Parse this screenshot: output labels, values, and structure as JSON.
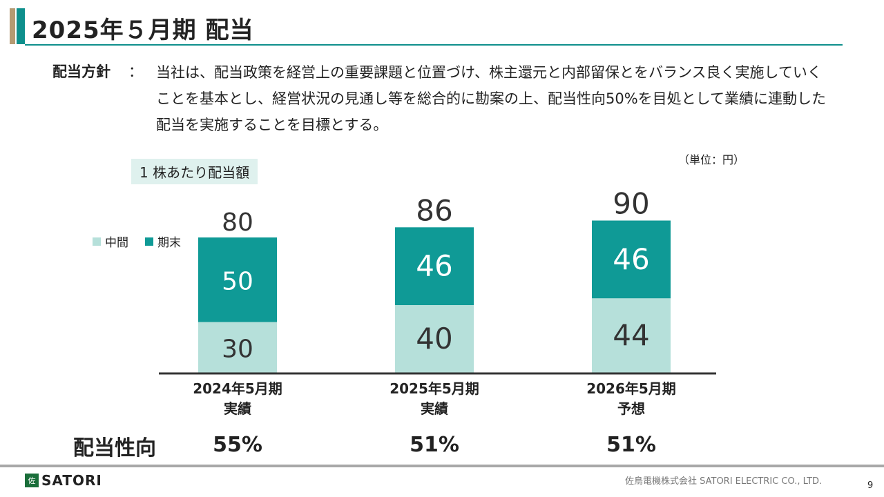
{
  "title": "2025年５月期 配当",
  "policy": {
    "label": "配当方針",
    "colon": "：",
    "text": "当社は、配当政策を経営上の重要課題と位置づけ、株主還元と内部留保とをバランス良く実施していくことを基本とし、経営状況の見通し等を総合的に勘案の上、配当性向50%を目処として業績に連動した配当を実施することを目標とする。"
  },
  "unit": "（単位：円）",
  "chart_data": {
    "type": "bar",
    "stacked": true,
    "title": "1 株あたり配当額",
    "categories": [
      [
        "2024年5月期",
        "実績"
      ],
      [
        "2025年5月期",
        "実績"
      ],
      [
        "2026年5月期",
        "予想"
      ]
    ],
    "series": [
      {
        "name": "中間",
        "values": [
          30,
          40,
          44
        ],
        "color": "#b6e0da"
      },
      {
        "name": "期末",
        "values": [
          50,
          46,
          46
        ],
        "color": "#0f9a96"
      }
    ],
    "totals": [
      80,
      86,
      90
    ],
    "ylim": [
      0,
      100
    ],
    "legend": "left"
  },
  "payout": {
    "label": "配当性向",
    "values": [
      "55%",
      "51%",
      "51%"
    ]
  },
  "footer": {
    "logo_mark": "佐",
    "logo_text": "SATORI",
    "company": "佐鳥電機株式会社 SATORI ELECTRIC CO., LTD.",
    "page": "9"
  }
}
